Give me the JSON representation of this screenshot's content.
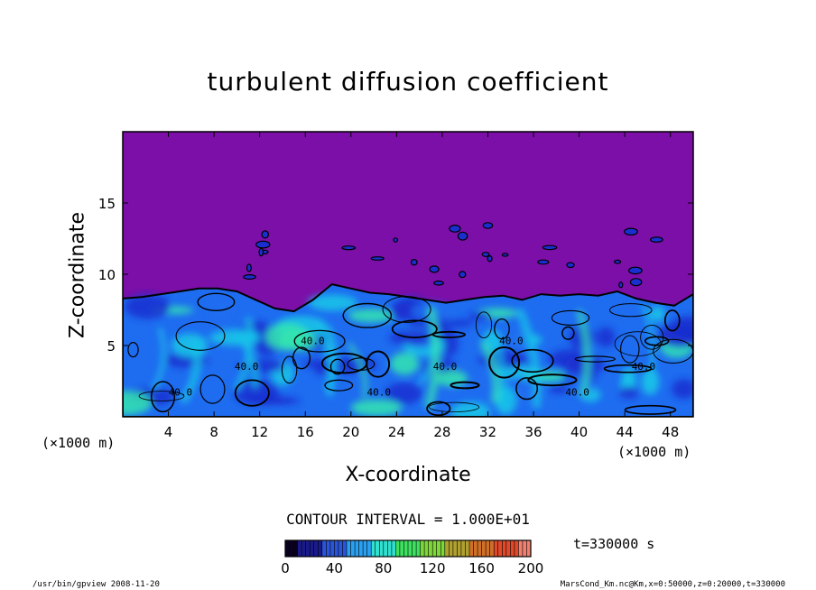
{
  "chart_data": {
    "type": "heatmap",
    "title": "turbulent diffusion coefficient",
    "xlabel": "X-coordinate",
    "ylabel": "Z-coordinate",
    "x_unit": "(×1000 m)",
    "y_unit": "(×1000 m)",
    "xlim": [
      0,
      50
    ],
    "ylim": [
      0,
      20
    ],
    "x_ticks": [
      4,
      8,
      12,
      16,
      20,
      24,
      28,
      32,
      36,
      40,
      44,
      48
    ],
    "y_ticks": [
      5,
      10,
      15
    ],
    "colorbar": {
      "min": 0,
      "max": 200,
      "ticks": [
        0,
        40,
        80,
        120,
        160,
        200
      ]
    },
    "contour_interval_text": "CONTOUR INTERVAL = 1.000E+01",
    "contour_labels": [
      "40.0",
      "40.0",
      "40.0",
      "40.0",
      "40.0",
      "40.0",
      "40.0",
      "40.0"
    ],
    "time_text": "t=330000 s",
    "boundary_layer_top_km": [
      8.3,
      8.4,
      8.6,
      8.8,
      9.0,
      9.0,
      8.8,
      8.2,
      7.6,
      7.4,
      8.2,
      9.3,
      9.0,
      8.7,
      8.6,
      8.4,
      8.2,
      8.0,
      8.2,
      8.4,
      8.5,
      8.2,
      8.6,
      8.5,
      8.6,
      8.5,
      8.8,
      8.3,
      8.0,
      7.8,
      8.6
    ]
  },
  "footer": {
    "left": "/usr/bin/gpview  2008-11-20",
    "right": "MarsCond_Km.nc@Km,x=0:50000,z=0:20000,t=330000"
  },
  "colors": {
    "background_field": "#7b0fa8",
    "deep_blue": "#1a2fd0",
    "mid_blue": "#1e6cf0",
    "cyan": "#19c8e8",
    "green": "#34e6b0",
    "contour": "#000000"
  }
}
